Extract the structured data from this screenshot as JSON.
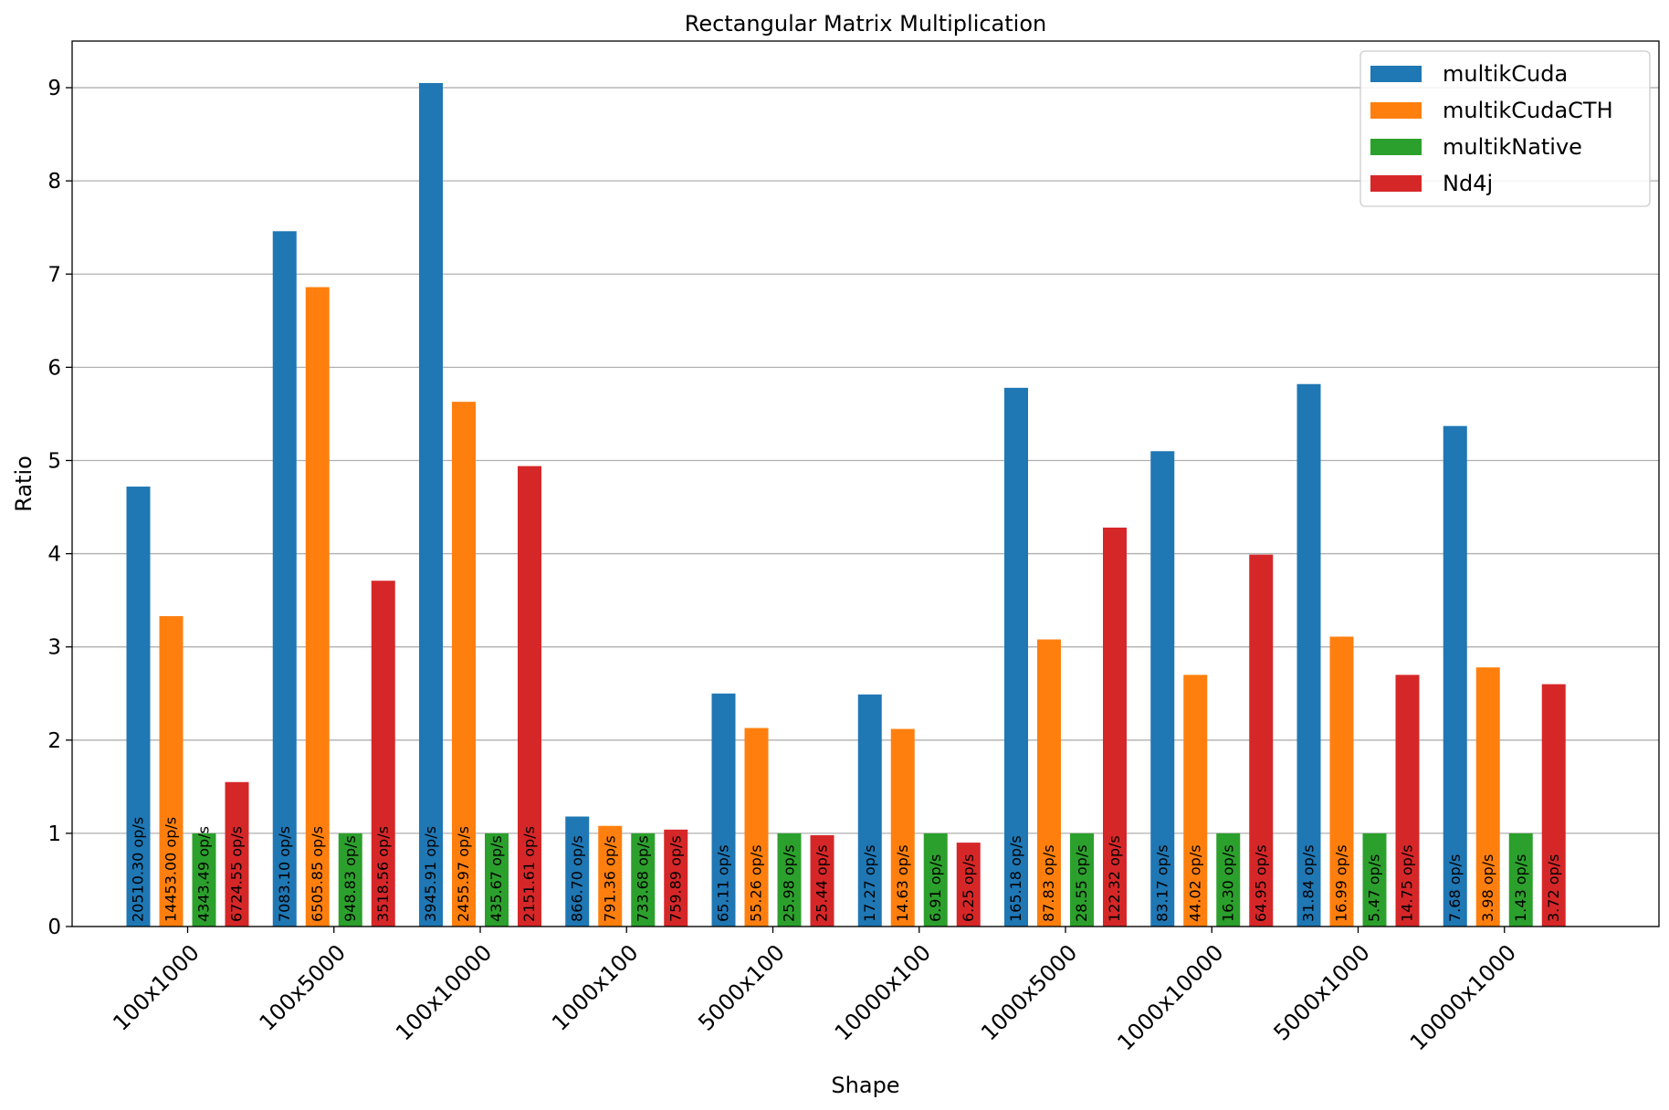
{
  "chart_data": {
    "type": "bar",
    "title": "Rectangular Matrix Multiplication",
    "xlabel": "Shape",
    "ylabel": "Ratio",
    "ylim": [
      0,
      9.5
    ],
    "yticks": [
      "0",
      "1",
      "2",
      "3",
      "4",
      "5",
      "6",
      "7",
      "8",
      "9"
    ],
    "grid": "horizontal",
    "legend_position": "top-right",
    "categories": [
      "100x1000",
      "100x5000",
      "100x10000",
      "1000x100",
      "5000x100",
      "10000x100",
      "1000x5000",
      "1000x10000",
      "5000x1000",
      "10000x1000"
    ],
    "series": [
      {
        "name": "multikCuda",
        "color": "#1f77b4",
        "values": [
          4.72,
          7.46,
          9.05,
          1.18,
          2.5,
          2.49,
          5.78,
          5.1,
          5.82,
          5.37
        ],
        "labels": [
          "20510.30 op/s",
          "7083.10 op/s",
          "3945.91 op/s",
          "866.70 op/s",
          "65.11 op/s",
          "17.27 op/s",
          "165.18 op/s",
          "83.17 op/s",
          "31.84 op/s",
          "7.68 op/s"
        ]
      },
      {
        "name": "multikCudaCTH",
        "color": "#ff7f0e",
        "values": [
          3.33,
          6.86,
          5.63,
          1.08,
          2.13,
          2.12,
          3.08,
          2.7,
          3.11,
          2.78
        ],
        "labels": [
          "14453.00 op/s",
          "6505.85 op/s",
          "2455.97 op/s",
          "791.36 op/s",
          "55.26 op/s",
          "14.63 op/s",
          "87.83 op/s",
          "44.02 op/s",
          "16.99 op/s",
          "3.98 op/s"
        ]
      },
      {
        "name": "multikNative",
        "color": "#2ca02c",
        "values": [
          1.0,
          1.0,
          1.0,
          1.0,
          1.0,
          1.0,
          1.0,
          1.0,
          1.0,
          1.0
        ],
        "labels": [
          "4343.49 op/s",
          "948.83 op/s",
          "435.67 op/s",
          "733.68 op/s",
          "25.98 op/s",
          "6.91 op/s",
          "28.55 op/s",
          "16.30 op/s",
          "5.47 op/s",
          "1.43 op/s"
        ]
      },
      {
        "name": "Nd4j",
        "color": "#d62728",
        "values": [
          1.55,
          3.71,
          4.94,
          1.04,
          0.98,
          0.9,
          4.28,
          3.99,
          2.7,
          2.6
        ],
        "labels": [
          "6724.55 op/s",
          "3518.56 op/s",
          "2151.61 op/s",
          "759.89 op/s",
          "25.44 op/s",
          "6.25 op/s",
          "122.32 op/s",
          "64.95 op/s",
          "14.75 op/s",
          "3.72 op/s"
        ]
      }
    ]
  }
}
